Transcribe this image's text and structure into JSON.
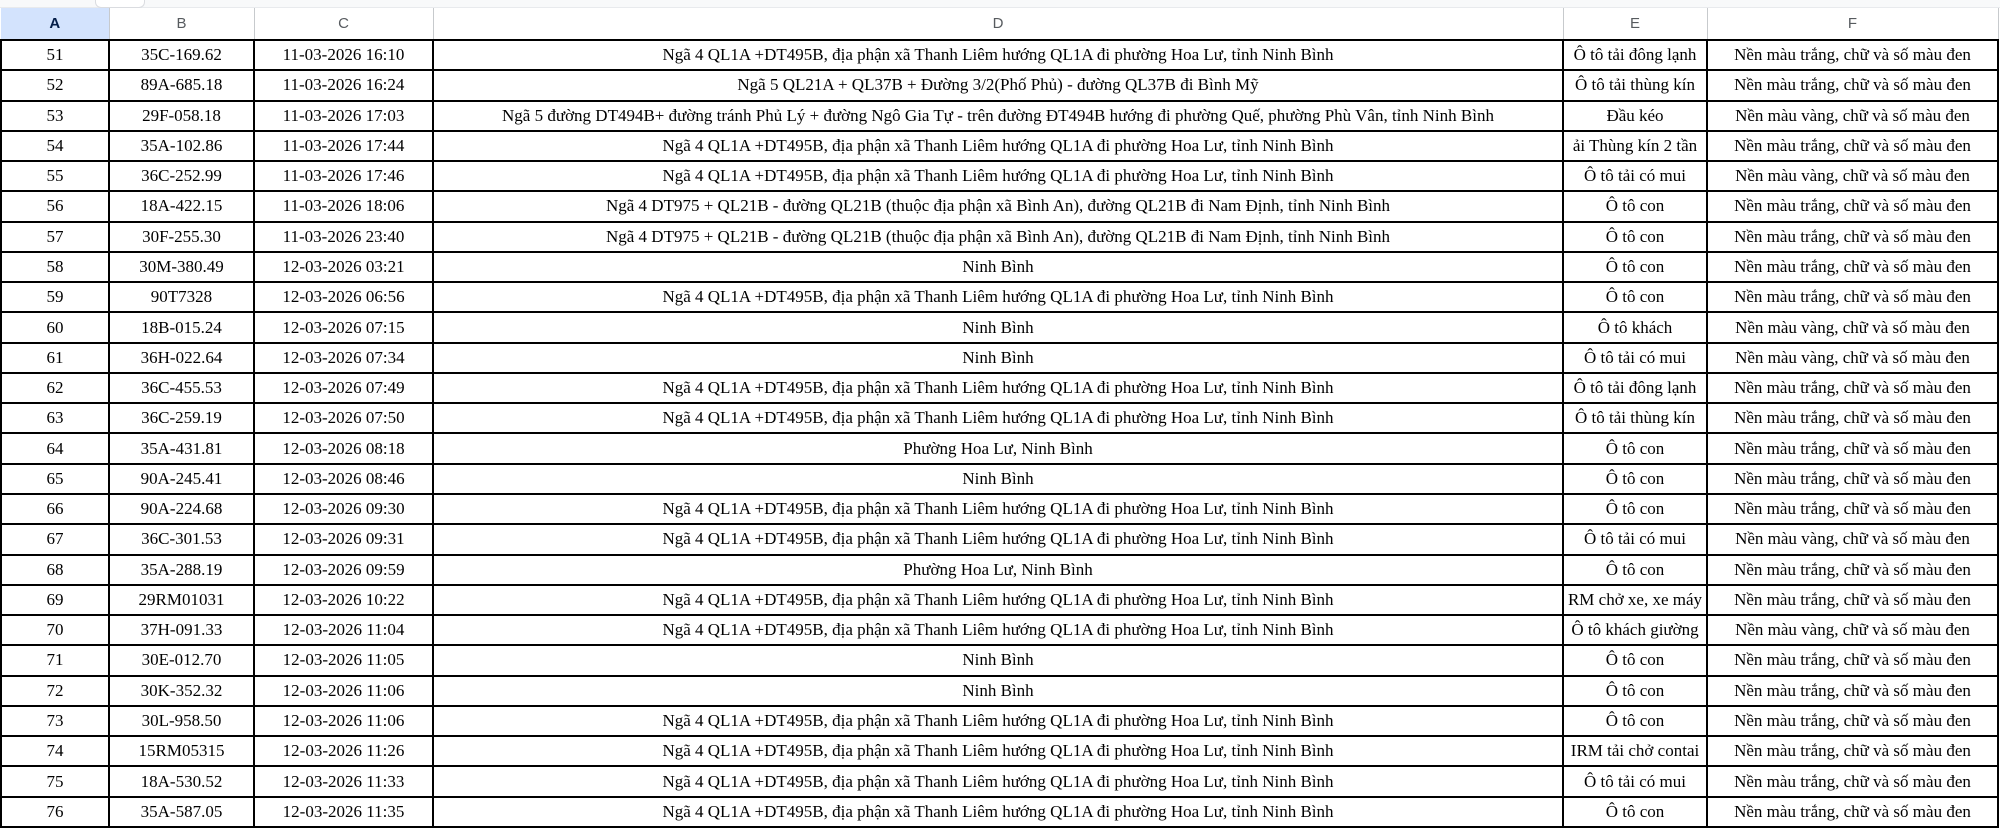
{
  "app": {
    "kind": "spreadsheet-grid"
  },
  "colors": {
    "selected_header_bg": "#d3e3fd",
    "selected_header_text": "#041e49",
    "header_text": "#575b5f",
    "cell_border": "#000000",
    "gridline": "#c7cacd",
    "cell_text": "#000000"
  },
  "columns": [
    {
      "letter": "A",
      "selected": true
    },
    {
      "letter": "B",
      "selected": false
    },
    {
      "letter": "C",
      "selected": false
    },
    {
      "letter": "D",
      "selected": false
    },
    {
      "letter": "E",
      "selected": false
    },
    {
      "letter": "F",
      "selected": false
    }
  ],
  "rows": [
    {
      "stt": "51",
      "plate": "35C-169.62",
      "time": "11-03-2026 16:10",
      "location": "Ngã 4 QL1A +DT495B, địa phận xã Thanh Liêm hướng QL1A đi phường Hoa Lư, tỉnh Ninh Bình",
      "vehicle_type": "Ô tô tải đông lạnh",
      "plate_colors": "Nền màu trắng, chữ và số màu đen"
    },
    {
      "stt": "52",
      "plate": "89A-685.18",
      "time": "11-03-2026 16:24",
      "location": "Ngã 5 QL21A + QL37B + Đường 3/2(Phố Phủ) - đường QL37B đi Bình Mỹ",
      "vehicle_type": "Ô tô tải thùng kín",
      "plate_colors": "Nền màu trắng, chữ và số màu đen"
    },
    {
      "stt": "53",
      "plate": "29F-058.18",
      "time": "11-03-2026 17:03",
      "location": "Ngã 5 đường DT494B+ đường tránh Phủ Lý + đường Ngô Gia Tự - trên đường ĐT494B hướng đi phường Quế, phường Phù Vân, tỉnh Ninh Bình",
      "vehicle_type": "Đầu kéo",
      "plate_colors": "Nền màu vàng, chữ và số màu đen"
    },
    {
      "stt": "54",
      "plate": "35A-102.86",
      "time": "11-03-2026 17:44",
      "location": "Ngã 4 QL1A +DT495B, địa phận xã Thanh Liêm hướng QL1A đi phường Hoa Lư, tỉnh Ninh Bình",
      "vehicle_type": "ải Thùng kín 2 tần",
      "plate_colors": "Nền màu trắng, chữ và số màu đen"
    },
    {
      "stt": "55",
      "plate": "36C-252.99",
      "time": "11-03-2026 17:46",
      "location": "Ngã 4 QL1A +DT495B, địa phận xã Thanh Liêm hướng QL1A đi phường Hoa Lư, tỉnh Ninh Bình",
      "vehicle_type": "Ô tô tải có mui",
      "plate_colors": "Nền màu vàng, chữ và số màu đen"
    },
    {
      "stt": "56",
      "plate": "18A-422.15",
      "time": "11-03-2026 18:06",
      "location": "Ngã 4 DT975 + QL21B - đường QL21B (thuộc địa phận xã Bình An), đường QL21B đi Nam Định, tỉnh Ninh Bình",
      "vehicle_type": "Ô tô con",
      "plate_colors": "Nền màu trắng, chữ và số màu đen"
    },
    {
      "stt": "57",
      "plate": "30F-255.30",
      "time": "11-03-2026 23:40",
      "location": "Ngã 4 DT975 + QL21B - đường QL21B (thuộc địa phận xã Bình An), đường QL21B đi Nam Định, tỉnh Ninh Bình",
      "vehicle_type": "Ô tô con",
      "plate_colors": "Nền màu trắng, chữ và số màu đen"
    },
    {
      "stt": "58",
      "plate": "30M-380.49",
      "time": "12-03-2026 03:21",
      "location": "Ninh Bình",
      "vehicle_type": "Ô tô con",
      "plate_colors": "Nền màu trắng, chữ và số màu đen"
    },
    {
      "stt": "59",
      "plate": "90T7328",
      "time": "12-03-2026 06:56",
      "location": "Ngã 4 QL1A +DT495B, địa phận xã Thanh Liêm hướng QL1A đi phường Hoa Lư, tỉnh Ninh Bình",
      "vehicle_type": "Ô tô con",
      "plate_colors": "Nền màu trắng, chữ và số màu đen"
    },
    {
      "stt": "60",
      "plate": "18B-015.24",
      "time": "12-03-2026 07:15",
      "location": "Ninh Bình",
      "vehicle_type": "Ô tô khách",
      "plate_colors": "Nền màu vàng, chữ và số màu đen"
    },
    {
      "stt": "61",
      "plate": "36H-022.64",
      "time": "12-03-2026 07:34",
      "location": "Ninh Bình",
      "vehicle_type": "Ô tô tải có mui",
      "plate_colors": "Nền màu vàng, chữ và số màu đen"
    },
    {
      "stt": "62",
      "plate": "36C-455.53",
      "time": "12-03-2026 07:49",
      "location": "Ngã 4 QL1A +DT495B, địa phận xã Thanh Liêm hướng QL1A đi phường Hoa Lư, tỉnh Ninh Bình",
      "vehicle_type": "Ô tô tải đông lạnh",
      "plate_colors": "Nền màu trắng, chữ và số màu đen"
    },
    {
      "stt": "63",
      "plate": "36C-259.19",
      "time": "12-03-2026 07:50",
      "location": "Ngã 4 QL1A +DT495B, địa phận xã Thanh Liêm hướng QL1A đi phường Hoa Lư, tỉnh Ninh Bình",
      "vehicle_type": "Ô tô tải thùng kín",
      "plate_colors": "Nền màu trắng, chữ và số màu đen"
    },
    {
      "stt": "64",
      "plate": "35A-431.81",
      "time": "12-03-2026 08:18",
      "location": "Phường Hoa Lư, Ninh Bình",
      "vehicle_type": "Ô tô con",
      "plate_colors": "Nền màu trắng, chữ và số màu đen"
    },
    {
      "stt": "65",
      "plate": "90A-245.41",
      "time": "12-03-2026 08:46",
      "location": "Ninh Bình",
      "vehicle_type": "Ô tô con",
      "plate_colors": "Nền màu trắng, chữ và số màu đen"
    },
    {
      "stt": "66",
      "plate": "90A-224.68",
      "time": "12-03-2026 09:30",
      "location": "Ngã 4 QL1A +DT495B, địa phận xã Thanh Liêm hướng QL1A đi phường Hoa Lư, tỉnh Ninh Bình",
      "vehicle_type": "Ô tô con",
      "plate_colors": "Nền màu trắng, chữ và số màu đen"
    },
    {
      "stt": "67",
      "plate": "36C-301.53",
      "time": "12-03-2026 09:31",
      "location": "Ngã 4 QL1A +DT495B, địa phận xã Thanh Liêm hướng QL1A đi phường Hoa Lư, tỉnh Ninh Bình",
      "vehicle_type": "Ô tô tải có mui",
      "plate_colors": "Nền màu vàng, chữ và số màu đen"
    },
    {
      "stt": "68",
      "plate": "35A-288.19",
      "time": "12-03-2026 09:59",
      "location": "Phường Hoa Lư, Ninh Bình",
      "vehicle_type": "Ô tô con",
      "plate_colors": "Nền màu trắng, chữ và số màu đen"
    },
    {
      "stt": "69",
      "plate": "29RM01031",
      "time": "12-03-2026 10:22",
      "location": "Ngã 4 QL1A +DT495B, địa phận xã Thanh Liêm hướng QL1A đi phường Hoa Lư, tỉnh Ninh Bình",
      "vehicle_type": "RM chở xe, xe máy",
      "plate_colors": "Nền màu trắng, chữ và số màu đen"
    },
    {
      "stt": "70",
      "plate": "37H-091.33",
      "time": "12-03-2026 11:04",
      "location": "Ngã 4 QL1A +DT495B, địa phận xã Thanh Liêm hướng QL1A đi phường Hoa Lư, tỉnh Ninh Bình",
      "vehicle_type": "Ô tô khách giường",
      "plate_colors": "Nền màu vàng, chữ và số màu đen"
    },
    {
      "stt": "71",
      "plate": "30E-012.70",
      "time": "12-03-2026 11:05",
      "location": "Ninh Bình",
      "vehicle_type": "Ô tô con",
      "plate_colors": "Nền màu trắng, chữ và số màu đen"
    },
    {
      "stt": "72",
      "plate": "30K-352.32",
      "time": "12-03-2026 11:06",
      "location": "Ninh Bình",
      "vehicle_type": "Ô tô con",
      "plate_colors": "Nền màu trắng, chữ và số màu đen"
    },
    {
      "stt": "73",
      "plate": "30L-958.50",
      "time": "12-03-2026 11:06",
      "location": "Ngã 4 QL1A +DT495B, địa phận xã Thanh Liêm hướng QL1A đi phường Hoa Lư, tỉnh Ninh Bình",
      "vehicle_type": "Ô tô con",
      "plate_colors": "Nền màu trắng, chữ và số màu đen"
    },
    {
      "stt": "74",
      "plate": "15RM05315",
      "time": "12-03-2026 11:26",
      "location": "Ngã 4 QL1A +DT495B, địa phận xã Thanh Liêm hướng QL1A đi phường Hoa Lư, tỉnh Ninh Bình",
      "vehicle_type": "IRM tải chở contai",
      "plate_colors": "Nền màu trắng, chữ và số màu đen"
    },
    {
      "stt": "75",
      "plate": "18A-530.52",
      "time": "12-03-2026 11:33",
      "location": "Ngã 4 QL1A +DT495B, địa phận xã Thanh Liêm hướng QL1A đi phường Hoa Lư, tỉnh Ninh Bình",
      "vehicle_type": "Ô tô tải có mui",
      "plate_colors": "Nền màu trắng, chữ và số màu đen"
    },
    {
      "stt": "76",
      "plate": "35A-587.05",
      "time": "12-03-2026 11:35",
      "location": "Ngã 4 QL1A +DT495B, địa phận xã Thanh Liêm hướng QL1A đi phường Hoa Lư, tỉnh Ninh Bình",
      "vehicle_type": "Ô tô con",
      "plate_colors": "Nền màu trắng, chữ và số màu đen"
    }
  ]
}
